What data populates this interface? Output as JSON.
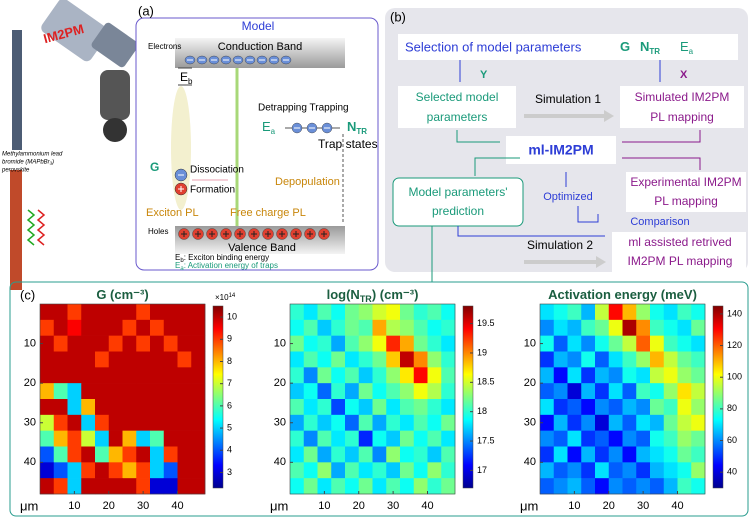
{
  "photo": {
    "instrument": "IM2PM",
    "caption": [
      "Methylammonium lead",
      "bromide (MAPbBr₃)",
      "perovskite"
    ]
  },
  "panel_a": {
    "label": "(a)",
    "title": "Model",
    "conduction_band": "Conduction Band",
    "electrons": "Electrons",
    "eb": {
      "symbol": "E",
      "sub": "b"
    },
    "detrapping_trapping": "Detrapping Trapping",
    "ea": {
      "symbol": "E",
      "sub": "a"
    },
    "ntr": {
      "symbol": "N",
      "sub": "TR"
    },
    "trap_states": "Trap states",
    "g": "G",
    "dissociation": "Dissociation",
    "formation": "Formation",
    "depopulation": "Depopulation",
    "exciton_pl": "Exciton PL",
    "free_charge_pl": "Free charge PL",
    "holes": "Holes",
    "valence_band": "Valence Band",
    "legend": [
      {
        "symbol": "E",
        "sub": "b",
        "text": ": Exciton binding energy"
      },
      {
        "symbol": "E",
        "sub": "a",
        "text": ": Activation energy of traps"
      }
    ]
  },
  "panel_b": {
    "label": "(b)",
    "selection": "Selection of model parameters",
    "params": [
      {
        "symbol": "G"
      },
      {
        "symbol": "N",
        "sub": "TR"
      },
      {
        "symbol": "E",
        "sub": "a"
      }
    ],
    "y": "Y",
    "x": "X",
    "selected": [
      "Selected model",
      "parameters"
    ],
    "simulation1": "Simulation 1",
    "simulated": [
      "Simulated IM2PM",
      "PL mapping"
    ],
    "ml": "ml-IM2PM",
    "prediction": [
      "Model parameters'",
      "prediction"
    ],
    "optimized": "Optimized",
    "experimental": [
      "Experimental IM2PM",
      "PL mapping"
    ],
    "comparison": "Comparison",
    "retrieved": [
      "ml assisted retrived",
      "IM2PM PL mapping"
    ],
    "simulation2": "Simulation 2"
  },
  "panel_c": {
    "label": "(c)"
  },
  "chart_data": [
    {
      "type": "heatmap",
      "title": [
        {
          "text": "G (cm⁻³)"
        }
      ],
      "colormap": "jet",
      "xlabel": "μm",
      "x": [
        2,
        6,
        10,
        14,
        18,
        22,
        26,
        30,
        34,
        38,
        42,
        46
      ],
      "y": [
        2,
        6,
        10,
        14,
        18,
        22,
        26,
        30,
        34,
        38,
        42,
        46
      ],
      "xlim": [
        0,
        48
      ],
      "ylim": [
        0,
        48
      ],
      "xticks": [
        10,
        20,
        30,
        40
      ],
      "yticks": [
        10,
        20,
        30,
        40
      ],
      "colorbar": {
        "lim": [
          2.3,
          10.5
        ],
        "ticks": [
          3,
          4,
          5,
          6,
          7,
          8,
          9,
          10
        ],
        "multiplier": {
          "base": "×10",
          "exponent": "14"
        }
      },
      "values": [
        [
          10,
          10,
          9,
          10,
          10,
          10,
          10,
          9,
          10,
          10,
          10,
          10
        ],
        [
          9,
          10,
          9.5,
          10,
          10,
          10,
          9,
          10,
          9,
          10,
          10,
          10
        ],
        [
          10,
          9,
          10,
          10,
          10,
          9,
          10,
          9,
          10,
          9,
          10,
          10
        ],
        [
          10,
          10,
          10,
          10,
          9,
          10,
          10,
          10,
          10,
          10,
          9,
          10
        ],
        [
          10,
          10,
          10,
          10,
          10,
          10,
          10,
          10,
          10,
          10,
          10,
          10
        ],
        [
          8,
          6,
          5,
          10,
          10,
          10,
          10,
          10,
          10,
          10,
          10,
          10
        ],
        [
          10,
          10,
          5,
          8,
          10,
          10,
          10,
          10,
          10,
          10,
          10,
          10
        ],
        [
          7,
          9,
          10,
          5,
          9,
          10,
          10,
          10,
          10,
          10,
          10,
          10
        ],
        [
          6,
          8,
          9,
          7,
          5,
          10,
          8,
          5,
          6,
          10,
          10,
          10
        ],
        [
          4,
          6,
          9,
          10,
          6,
          8,
          9,
          10,
          5,
          9,
          10,
          10
        ],
        [
          3,
          4,
          5,
          9,
          10,
          9,
          8,
          9,
          5,
          4,
          10,
          10
        ],
        [
          10,
          9,
          5,
          10,
          10,
          10,
          10,
          9,
          3,
          3,
          10,
          10
        ]
      ]
    },
    {
      "type": "heatmap",
      "title": [
        {
          "text": "log(N"
        },
        {
          "text": "TR",
          "sub": true
        },
        {
          "text": ") (cm⁻³)"
        }
      ],
      "colormap": "jet",
      "xlabel": "μm",
      "x": [
        2,
        6,
        10,
        14,
        18,
        22,
        26,
        30,
        34,
        38,
        42,
        46
      ],
      "y": [
        2,
        6,
        10,
        14,
        18,
        22,
        26,
        30,
        34,
        38,
        42,
        46
      ],
      "xlim": [
        0,
        48
      ],
      "ylim": [
        0,
        48
      ],
      "xticks": [
        10,
        20,
        30,
        40
      ],
      "yticks": [
        10,
        20,
        30,
        40
      ],
      "colorbar": {
        "lim": [
          16.7,
          19.8
        ],
        "ticks": [
          17,
          17.5,
          18,
          18.5,
          19,
          19.5
        ]
      },
      "values": [
        [
          18,
          17.8,
          18.1,
          17.9,
          18.2,
          18.3,
          18.5,
          18.6,
          18.2,
          18,
          18.1,
          17.9
        ],
        [
          17.9,
          18.1,
          17.7,
          18,
          18.2,
          18.1,
          18.9,
          18.4,
          18.3,
          18.1,
          17.9,
          18
        ],
        [
          18.2,
          17.9,
          18,
          17.6,
          18.1,
          18.3,
          18.6,
          19.3,
          18.9,
          18.2,
          18,
          17.8
        ],
        [
          17.8,
          18.1,
          17.9,
          18.2,
          17.8,
          18,
          18.2,
          18.8,
          19.6,
          19,
          18.3,
          18
        ],
        [
          18,
          17.5,
          18.2,
          17.9,
          18.1,
          17.7,
          18,
          18.3,
          18.7,
          19.4,
          18.6,
          18.1
        ],
        [
          17.7,
          17.9,
          17.4,
          18,
          17.6,
          18.2,
          17.9,
          18.1,
          18.3,
          18.6,
          18.4,
          18
        ],
        [
          18.1,
          17.8,
          18,
          17.3,
          17.9,
          17.7,
          18.2,
          17.8,
          18.1,
          18.2,
          18,
          17.8
        ],
        [
          17.6,
          18,
          17.7,
          17.9,
          17.4,
          18.1,
          17.6,
          18,
          17.8,
          18.1,
          17.9,
          18.2
        ],
        [
          18,
          17.5,
          18.1,
          17.8,
          18,
          17.2,
          17.9,
          17.7,
          18.2,
          17.9,
          18.1,
          17.8
        ],
        [
          17.8,
          18.2,
          17.6,
          18,
          17.7,
          18.1,
          17.5,
          18.3,
          17.9,
          18,
          17.7,
          18.1
        ],
        [
          18.1,
          17.9,
          18.3,
          17.6,
          18.1,
          17.8,
          18,
          17.7,
          18.2,
          17.9,
          18.3,
          18
        ],
        [
          17.9,
          18.2,
          17.8,
          18.1,
          17.9,
          18.2,
          17.8,
          18.1,
          17.9,
          18.3,
          18,
          18.2
        ]
      ]
    },
    {
      "type": "heatmap",
      "title": [
        {
          "text": "Activation energy (meV)"
        }
      ],
      "colormap": "jet",
      "xlabel": "μm",
      "x": [
        2,
        6,
        10,
        14,
        18,
        22,
        26,
        30,
        34,
        38,
        42,
        46
      ],
      "y": [
        2,
        6,
        10,
        14,
        18,
        22,
        26,
        30,
        34,
        38,
        42,
        46
      ],
      "xlim": [
        0,
        48
      ],
      "ylim": [
        0,
        48
      ],
      "xticks": [
        10,
        20,
        30,
        40
      ],
      "yticks": [
        10,
        20,
        30,
        40
      ],
      "colorbar": {
        "lim": [
          30,
          145
        ],
        "ticks": [
          40,
          60,
          80,
          100,
          120,
          140
        ]
      },
      "values": [
        [
          70,
          75,
          80,
          65,
          95,
          130,
          110,
          90,
          75,
          70,
          80,
          75
        ],
        [
          60,
          70,
          65,
          80,
          85,
          100,
          140,
          115,
          80,
          75,
          70,
          85
        ],
        [
          75,
          55,
          70,
          60,
          75,
          85,
          95,
          120,
          100,
          80,
          75,
          70
        ],
        [
          50,
          65,
          60,
          75,
          55,
          70,
          80,
          90,
          110,
          95,
          85,
          80
        ],
        [
          65,
          45,
          70,
          50,
          65,
          60,
          75,
          70,
          95,
          100,
          90,
          85
        ],
        [
          55,
          60,
          40,
          65,
          50,
          70,
          55,
          80,
          75,
          90,
          105,
          95
        ],
        [
          70,
          50,
          55,
          45,
          60,
          55,
          65,
          60,
          85,
          80,
          100,
          90
        ],
        [
          45,
          65,
          50,
          60,
          40,
          65,
          55,
          70,
          65,
          85,
          95,
          100
        ],
        [
          60,
          55,
          70,
          50,
          55,
          45,
          60,
          55,
          75,
          80,
          90,
          85
        ],
        [
          50,
          70,
          45,
          65,
          50,
          60,
          45,
          65,
          70,
          75,
          85,
          80
        ],
        [
          65,
          55,
          60,
          50,
          70,
          55,
          60,
          50,
          65,
          70,
          75,
          90
        ],
        [
          55,
          60,
          65,
          55,
          45,
          60,
          55,
          60,
          55,
          65,
          80,
          75
        ]
      ]
    }
  ]
}
